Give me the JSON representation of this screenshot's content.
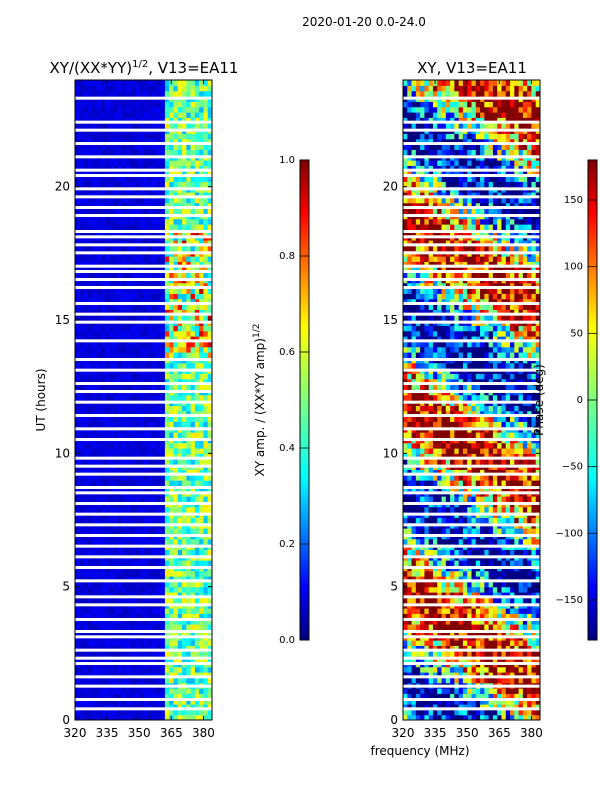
{
  "suptitle": "2020-01-20 0.0-24.0",
  "colors": {
    "jet": [
      "#00007f",
      "#0000ff",
      "#007fff",
      "#00ffff",
      "#7fff7f",
      "#ffff00",
      "#ff7f00",
      "#ff0000",
      "#7f0000"
    ],
    "gap": "#ffffff"
  },
  "chart_data": [
    {
      "type": "heatmap",
      "title": "XY/(XX*YY)^1/2, V13=EA11",
      "title_text": "XY/(XX*YY)",
      "title_sup": "1/2",
      "title_suffix": ", V13=EA11",
      "xlabel": "",
      "ylabel": "UT (hours)",
      "xlim": [
        320,
        384
      ],
      "ylim": [
        0,
        24
      ],
      "xticks": [
        320,
        335,
        350,
        365,
        380
      ],
      "yticks": [
        0,
        5,
        10,
        15,
        20
      ],
      "colorbar": {
        "label": "XY amp. / (XX*YY amp)",
        "label_sup": "1/2",
        "range": [
          0.0,
          1.0
        ],
        "ticks": [
          "0.0",
          "0.2",
          "0.4",
          "0.6",
          "0.8",
          "1.0"
        ]
      },
      "bright_band_mhz": [
        362,
        384
      ],
      "flagged_hours": [
        0.4,
        0.75,
        1.25,
        1.6,
        2.1,
        2.3,
        2.6,
        3.1,
        3.3,
        3.75,
        4.3,
        4.6,
        5.2,
        5.7,
        6.1,
        6.5,
        6.9,
        7.3,
        7.7,
        8.1,
        8.5,
        8.7,
        9.2,
        9.5,
        9.8,
        10.5,
        10.9,
        11.4,
        11.9,
        12.3,
        12.6,
        13.1,
        13.5,
        14.2,
        14.9,
        15.2,
        15.6,
        16.2,
        16.5,
        16.8,
        17.0,
        17.5,
        17.8,
        18.1,
        18.3,
        18.9,
        19.2,
        19.6,
        19.9,
        20.4,
        20.6,
        21.1,
        21.6,
        22.1,
        22.4,
        23.3
      ]
    },
    {
      "type": "heatmap",
      "title": "XY, V13=EA11",
      "xlabel": "",
      "ylabel": "",
      "xlim": [
        320,
        384
      ],
      "ylim": [
        0,
        24
      ],
      "xticks": [
        320,
        335,
        350,
        365,
        380
      ],
      "yticks": [
        0,
        5,
        10,
        15,
        20
      ],
      "colorbar": {
        "label": "Phase (deg)",
        "range": [
          -180,
          180
        ],
        "ticks": [
          "−150",
          "−100",
          "−50",
          "0",
          "50",
          "100",
          "150"
        ]
      },
      "flagged_hours": [
        0.4,
        0.75,
        1.25,
        1.6,
        2.1,
        2.3,
        2.6,
        3.1,
        3.3,
        3.75,
        4.3,
        4.6,
        5.2,
        5.7,
        6.1,
        6.5,
        6.9,
        7.3,
        7.7,
        8.1,
        8.5,
        8.7,
        9.2,
        9.5,
        9.8,
        10.5,
        10.9,
        11.4,
        11.9,
        12.3,
        12.6,
        13.1,
        13.5,
        14.2,
        14.9,
        15.2,
        15.6,
        16.2,
        16.5,
        16.8,
        17.0,
        17.5,
        17.8,
        18.1,
        18.3,
        18.9,
        19.2,
        19.6,
        19.9,
        20.4,
        20.6,
        21.1,
        21.6,
        22.1,
        22.4,
        23.3
      ]
    }
  ],
  "shared_xlabel": "frequency (MHz)"
}
